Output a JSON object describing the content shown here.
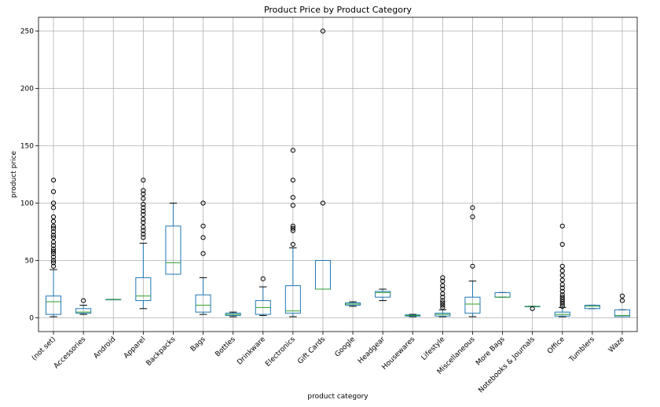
{
  "chart_data": {
    "type": "box",
    "title": "Product Price by Product Category",
    "xlabel": "product category",
    "ylabel": "product price",
    "ylim": [
      -12,
      262
    ],
    "yticks": [
      0,
      50,
      100,
      150,
      200,
      250
    ],
    "grid": true,
    "box_color": "#1f77b4",
    "median_color": "#2ca02c",
    "whisker_color": "#1f77b4",
    "cap_color": "#000000",
    "flier_color": "#000000",
    "categories": [
      {
        "label": "(not set)",
        "q1": 3,
        "median": 14,
        "q3": 19,
        "low": 1,
        "high": 42,
        "fliers": [
          45,
          48,
          50,
          53,
          56,
          58,
          60,
          63,
          66,
          70,
          72,
          75,
          78,
          80,
          84,
          88,
          96,
          100,
          110,
          120
        ]
      },
      {
        "label": "Accessories",
        "q1": 4,
        "median": 5,
        "q3": 8,
        "low": 3,
        "high": 11,
        "fliers": [
          15
        ]
      },
      {
        "label": "Android",
        "q1": 16,
        "median": 16,
        "q3": 16,
        "low": 16,
        "high": 16,
        "fliers": []
      },
      {
        "label": "Apparel",
        "q1": 15,
        "median": 19,
        "q3": 35,
        "low": 8,
        "high": 65,
        "fliers": [
          70,
          73,
          76,
          79,
          83,
          86,
          90,
          93,
          96,
          99,
          104,
          108,
          111,
          120
        ]
      },
      {
        "label": "Backpacks",
        "q1": 38,
        "median": 48,
        "q3": 80,
        "low": 38,
        "high": 100,
        "fliers": []
      },
      {
        "label": "Bags",
        "q1": 5,
        "median": 11,
        "q3": 20,
        "low": 3,
        "high": 35,
        "fliers": [
          56,
          70,
          80,
          100
        ]
      },
      {
        "label": "Bottles",
        "q1": 2,
        "median": 3,
        "q3": 4,
        "low": 1,
        "high": 5,
        "fliers": []
      },
      {
        "label": "Drinkware",
        "q1": 3,
        "median": 9,
        "q3": 15,
        "low": 2,
        "high": 27,
        "fliers": [
          34
        ]
      },
      {
        "label": "Electronics",
        "q1": 4,
        "median": 6,
        "q3": 28,
        "low": 1,
        "high": 61,
        "fliers": [
          64,
          76,
          78,
          80,
          98,
          105,
          120,
          146
        ]
      },
      {
        "label": "Gift Cards",
        "q1": 25,
        "median": 25,
        "q3": 50,
        "low": 25,
        "high": 50,
        "fliers": [
          100,
          250
        ]
      },
      {
        "label": "Google",
        "q1": 11,
        "median": 12,
        "q3": 13,
        "low": 10,
        "high": 14,
        "fliers": []
      },
      {
        "label": "Headgear",
        "q1": 18,
        "median": 22,
        "q3": 23,
        "low": 15,
        "high": 25,
        "fliers": []
      },
      {
        "label": "Housewares",
        "q1": 1.5,
        "median": 2,
        "q3": 2.5,
        "low": 1,
        "high": 3,
        "fliers": []
      },
      {
        "label": "Lifestyle",
        "q1": 1.5,
        "median": 3,
        "q3": 4,
        "low": 1,
        "high": 7,
        "fliers": [
          9,
          11,
          13,
          15,
          18,
          21,
          25,
          28,
          32,
          35
        ]
      },
      {
        "label": "Miscellaneous",
        "q1": 4,
        "median": 12,
        "q3": 18,
        "low": 1,
        "high": 32,
        "fliers": [
          45,
          88,
          96
        ]
      },
      {
        "label": "More Bags",
        "q1": 18,
        "median": 18,
        "q3": 22,
        "low": 18,
        "high": 22,
        "fliers": []
      },
      {
        "label": "Notebooks & Journals",
        "q1": 10,
        "median": 10,
        "q3": 10,
        "low": 10,
        "high": 10,
        "fliers": [
          8
        ]
      },
      {
        "label": "Office",
        "q1": 1.5,
        "median": 3,
        "q3": 5,
        "low": 1,
        "high": 9,
        "fliers": [
          10,
          12,
          14,
          16,
          18,
          20,
          23,
          26,
          29,
          33,
          37,
          41,
          45,
          64,
          80
        ]
      },
      {
        "label": "Tumblers",
        "q1": 8,
        "median": 10,
        "q3": 11,
        "low": 8,
        "high": 11,
        "fliers": []
      },
      {
        "label": "Waze",
        "q1": 1,
        "median": 2,
        "q3": 7,
        "low": 1,
        "high": 7,
        "fliers": [
          15,
          19
        ]
      }
    ]
  }
}
